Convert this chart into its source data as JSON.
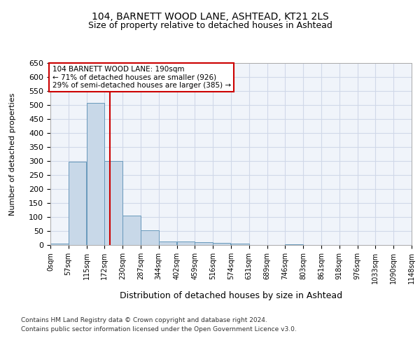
{
  "title1": "104, BARNETT WOOD LANE, ASHTEAD, KT21 2LS",
  "title2": "Size of property relative to detached houses in Ashtead",
  "xlabel": "Distribution of detached houses by size in Ashtead",
  "ylabel": "Number of detached properties",
  "bin_edges": [
    0,
    57,
    115,
    172,
    230,
    287,
    344,
    402,
    459,
    516,
    574,
    631,
    689,
    746,
    803,
    861,
    918,
    976,
    1033,
    1090,
    1148
  ],
  "bin_labels": [
    "0sqm",
    "57sqm",
    "115sqm",
    "172sqm",
    "230sqm",
    "287sqm",
    "344sqm",
    "402sqm",
    "459sqm",
    "516sqm",
    "574sqm",
    "631sqm",
    "689sqm",
    "746sqm",
    "803sqm",
    "861sqm",
    "918sqm",
    "976sqm",
    "1033sqm",
    "1090sqm",
    "1148sqm"
  ],
  "bar_values": [
    5,
    297,
    507,
    300,
    105,
    53,
    13,
    13,
    10,
    8,
    5,
    1,
    0,
    3,
    0,
    0,
    1,
    0,
    1,
    0
  ],
  "bar_color": "#c8d8e8",
  "bar_edge_color": "#6899bb",
  "property_size": 190,
  "vline_color": "#cc0000",
  "ylim": [
    0,
    650
  ],
  "yticks": [
    0,
    50,
    100,
    150,
    200,
    250,
    300,
    350,
    400,
    450,
    500,
    550,
    600,
    650
  ],
  "annotation_box_text": "104 BARNETT WOOD LANE: 190sqm\n← 71% of detached houses are smaller (926)\n29% of semi-detached houses are larger (385) →",
  "annotation_box_color": "#cc0000",
  "grid_color": "#d0d8e8",
  "bg_color": "#f0f4fa",
  "footer1": "Contains HM Land Registry data © Crown copyright and database right 2024.",
  "footer2": "Contains public sector information licensed under the Open Government Licence v3.0."
}
